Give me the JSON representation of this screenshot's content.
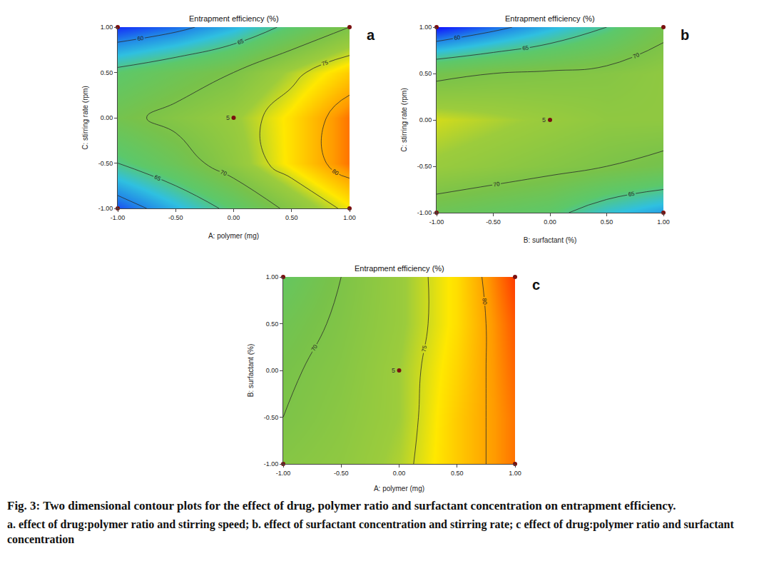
{
  "chart_data": [
    {
      "type": "contour",
      "panel": "a",
      "title": "Entrapment efficiency (%)",
      "x_label": "A: polymer (mg)",
      "y_label": "C: stirring rate (rpm)",
      "x": [
        -1,
        -0.5,
        0,
        0.5,
        1
      ],
      "y": [
        -1,
        -0.5,
        0,
        0.5,
        1
      ],
      "z": [
        [
          58,
          62,
          66,
          71,
          76
        ],
        [
          65,
          68,
          72,
          77,
          82
        ],
        [
          69,
          71,
          73,
          77,
          82
        ],
        [
          66,
          68,
          70,
          74,
          78
        ],
        [
          57,
          59,
          62,
          66,
          70
        ]
      ],
      "xlim": [
        -1,
        1
      ],
      "ylim": [
        -1,
        1
      ],
      "xticks": [
        {
          "value": -1,
          "label": "-1.00"
        },
        {
          "value": -0.5,
          "label": "-0.50"
        },
        {
          "value": 0,
          "label": "0.00"
        },
        {
          "value": 0.5,
          "label": "0.50"
        },
        {
          "value": 1,
          "label": "1.00"
        }
      ],
      "yticks": [
        {
          "value": -1,
          "label": "-1.00"
        },
        {
          "value": -0.5,
          "label": "-0.50"
        },
        {
          "value": 0,
          "label": "0.00"
        },
        {
          "value": 0.5,
          "label": "0.50"
        },
        {
          "value": 1,
          "label": "1.00"
        }
      ],
      "contour_levels": {
        "start": 60,
        "end": 80,
        "size": 5
      },
      "color_range": [
        56,
        86
      ],
      "design_points": {
        "x": [
          -1,
          -1,
          1,
          1,
          0
        ],
        "y": [
          -1,
          1,
          -1,
          1,
          0
        ]
      },
      "center_point": {
        "x": 0,
        "y": 0,
        "label": "5"
      }
    },
    {
      "type": "contour",
      "panel": "b",
      "title": "Entrapment efficiency (%)",
      "x_label": "B: surfactant (%)",
      "y_label": "C: stirring rate (rpm)",
      "x": [
        -1,
        -0.5,
        0,
        0.5,
        1
      ],
      "y": [
        -1,
        -0.5,
        0,
        0.5,
        1
      ],
      "z": [
        [
          68,
          67,
          66,
          63,
          61
        ],
        [
          73,
          72,
          71,
          70,
          69
        ],
        [
          75,
          74,
          73,
          72,
          72
        ],
        [
          69,
          70,
          70.5,
          71,
          72
        ],
        [
          56,
          59,
          62,
          65,
          69
        ]
      ],
      "xlim": [
        -1,
        1
      ],
      "ylim": [
        -1,
        1
      ],
      "xticks": [
        {
          "value": -1,
          "label": "-1.00"
        },
        {
          "value": -0.5,
          "label": "-0.50"
        },
        {
          "value": 0,
          "label": "0.00"
        },
        {
          "value": 0.5,
          "label": "0.50"
        },
        {
          "value": 1,
          "label": "1.00"
        }
      ],
      "yticks": [
        {
          "value": -1,
          "label": "-1.00"
        },
        {
          "value": -0.5,
          "label": "-0.50"
        },
        {
          "value": 0,
          "label": "0.00"
        },
        {
          "value": 0.5,
          "label": "0.50"
        },
        {
          "value": 1,
          "label": "1.00"
        }
      ],
      "contour_levels": {
        "start": 60,
        "end": 80,
        "size": 5
      },
      "color_range": [
        56,
        86
      ],
      "design_points": {
        "x": [
          -1,
          -1,
          1,
          1,
          0
        ],
        "y": [
          -1,
          1,
          -1,
          1,
          0
        ]
      },
      "center_point": {
        "x": 0,
        "y": 0,
        "label": "5"
      }
    },
    {
      "type": "contour",
      "panel": "c",
      "title": "Entrapment efficiency (%)",
      "x_label": "A: polymer (mg)",
      "y_label": "B: surfactant (%)",
      "x": [
        -1,
        -0.5,
        0,
        0.5,
        1
      ],
      "y": [
        -1,
        -0.5,
        0,
        0.5,
        1
      ],
      "z": [
        [
          71,
          72,
          74,
          78,
          82
        ],
        [
          70,
          71.5,
          73.5,
          78,
          82
        ],
        [
          69.5,
          71,
          73.5,
          77.5,
          82.5
        ],
        [
          68.5,
          70.5,
          73,
          77,
          83
        ],
        [
          67,
          70,
          73,
          77,
          84
        ]
      ],
      "xlim": [
        -1,
        1
      ],
      "ylim": [
        -1,
        1
      ],
      "xticks": [
        {
          "value": -1,
          "label": "-1.00"
        },
        {
          "value": -0.5,
          "label": "-0.50"
        },
        {
          "value": 0,
          "label": "0.00"
        },
        {
          "value": 0.5,
          "label": "0.50"
        },
        {
          "value": 1,
          "label": "1.00"
        }
      ],
      "yticks": [
        {
          "value": -1,
          "label": "-1.00"
        },
        {
          "value": -0.5,
          "label": "-0.50"
        },
        {
          "value": 0,
          "label": "0.00"
        },
        {
          "value": 0.5,
          "label": "0.50"
        },
        {
          "value": 1,
          "label": "1.00"
        }
      ],
      "contour_levels": {
        "start": 60,
        "end": 80,
        "size": 5
      },
      "color_range": [
        56,
        86
      ],
      "design_points": {
        "x": [
          -1,
          -1,
          1,
          1,
          0
        ],
        "y": [
          -1,
          1,
          -1,
          1,
          0
        ]
      },
      "center_point": {
        "x": 0,
        "y": 0,
        "label": "5"
      }
    }
  ],
  "caption": {
    "title": "Fig. 3: Two dimensional contour plots for the effect of drug, polymer ratio and surfactant concentration on entrapment efficiency.",
    "text": "a. effect of drug:polymer ratio and stirring speed; b. effect of surfactant concentration and stirring rate; c effect of drug:polymer ratio and surfactant concentration"
  }
}
